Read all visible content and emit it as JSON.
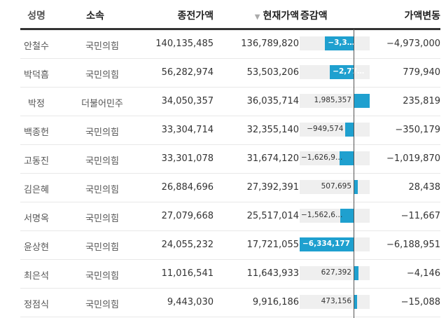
{
  "table": {
    "headers": {
      "name": "성명",
      "party": "소속",
      "prev_value": "종전가액",
      "curr_value": "현재가액",
      "diff": "증감액",
      "change": "가액변동"
    },
    "sort_indicator": "▼",
    "sorted_column": "curr_value",
    "bar_color": "#1fa0cf",
    "rows": [
      {
        "name": "안철수",
        "party": "국민의힘",
        "prev": "140,135,485",
        "curr": "136,789,820",
        "diff_label": "−3,3…",
        "diff": -3345665,
        "change": "−4,973,000"
      },
      {
        "name": "박덕흠",
        "party": "국민의힘",
        "prev": "56,282,974",
        "curr": "53,503,206",
        "diff_label": "−2,77…",
        "diff": -2779768,
        "change": "779,940"
      },
      {
        "name": "박정",
        "party": "더불어민주",
        "prev": "34,050,357",
        "curr": "36,035,714",
        "diff_label": "1,985,357",
        "diff": 1985357,
        "change": "235,819"
      },
      {
        "name": "백종헌",
        "party": "국민의힘",
        "prev": "33,304,714",
        "curr": "32,355,140",
        "diff_label": "−949,574",
        "diff": -949574,
        "change": "−350,179"
      },
      {
        "name": "고동진",
        "party": "국민의힘",
        "prev": "33,301,078",
        "curr": "31,674,120",
        "diff_label": "−1,626,9…",
        "diff": -1626958,
        "change": "−1,019,870"
      },
      {
        "name": "김은혜",
        "party": "국민의힘",
        "prev": "26,884,696",
        "curr": "27,392,391",
        "diff_label": "507,695",
        "diff": 507695,
        "change": "28,438"
      },
      {
        "name": "서명옥",
        "party": "국민의힘",
        "prev": "27,079,668",
        "curr": "25,517,014",
        "diff_label": "−1,562,6…",
        "diff": -1562654,
        "change": "−11,667"
      },
      {
        "name": "윤상현",
        "party": "국민의힘",
        "prev": "24,055,232",
        "curr": "17,721,055",
        "diff_label": "−6,334,177",
        "diff": -6334177,
        "change": "−6,188,951"
      },
      {
        "name": "최은석",
        "party": "국민의힘",
        "prev": "11,016,541",
        "curr": "11,643,933",
        "diff_label": "627,392",
        "diff": 627392,
        "change": "−4,146"
      },
      {
        "name": "정점식",
        "party": "국민의힘",
        "prev": "9,443,030",
        "curr": "9,916,186",
        "diff_label": "473,156",
        "diff": 473156,
        "change": "−15,088"
      }
    ]
  }
}
